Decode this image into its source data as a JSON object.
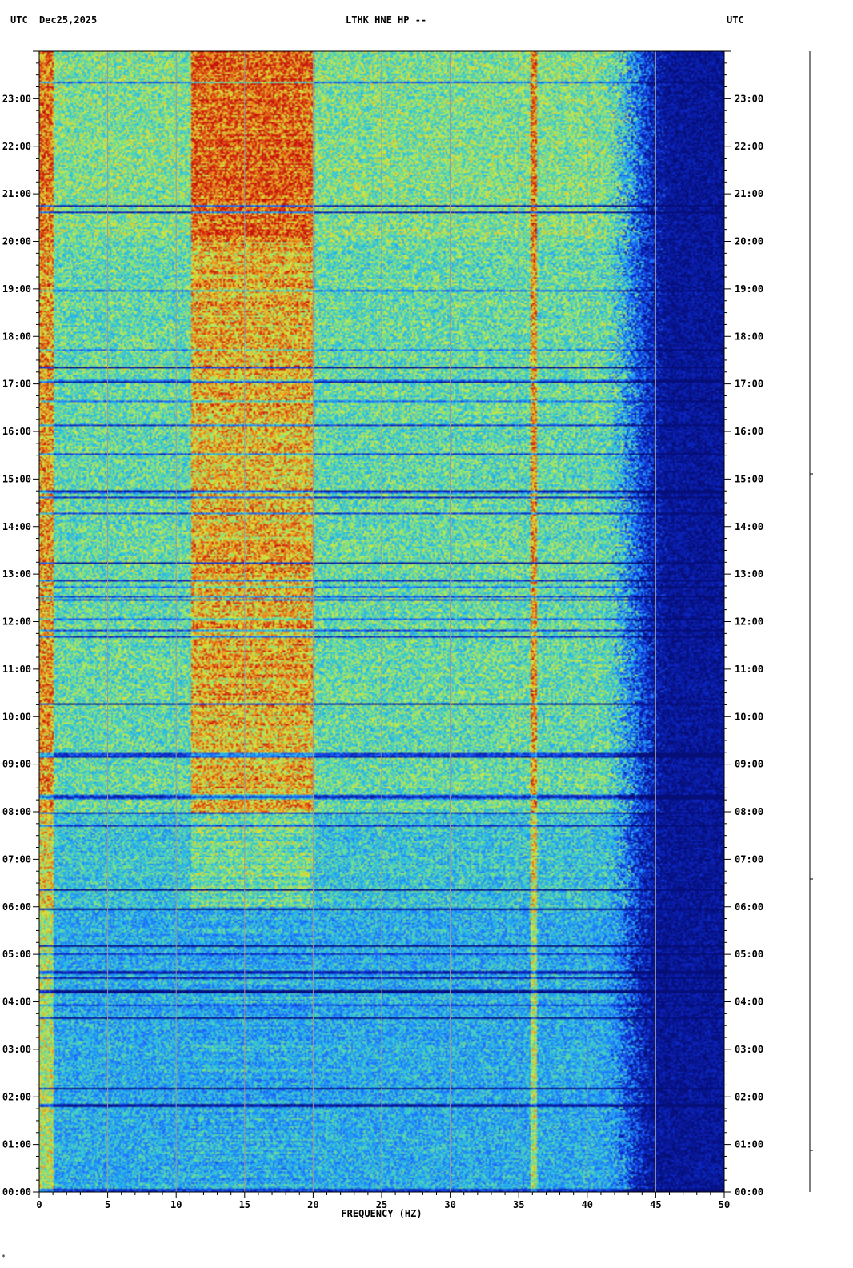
{
  "header": {
    "left_tz": "UTC",
    "date": "Dec25,2025",
    "station": "LTHK HNE HP --",
    "right_tz": "UTC"
  },
  "colors": {
    "background": "#ffffff",
    "noise_floor": "#0a1ea8",
    "low_energy": "#1e6cff",
    "mid_energy": "#29c8e0",
    "high_energy": "#c8e83c",
    "peak_energy": "#d21e10",
    "gridline": "#9a9a9a"
  },
  "chart_data": {
    "type": "heatmap",
    "title": "",
    "xlabel": "FREQUENCY (HZ)",
    "ylabel": "",
    "xlim": [
      0,
      50
    ],
    "ylim": [
      "00:00",
      "24:00"
    ],
    "x_ticks": [
      "0",
      "5",
      "10",
      "15",
      "20",
      "25",
      "30",
      "35",
      "40",
      "45",
      "50"
    ],
    "y_ticks_left": [
      "00:00",
      "01:00",
      "02:00",
      "03:00",
      "04:00",
      "05:00",
      "06:00",
      "07:00",
      "08:00",
      "09:00",
      "10:00",
      "11:00",
      "12:00",
      "13:00",
      "14:00",
      "15:00",
      "16:00",
      "17:00",
      "18:00",
      "19:00",
      "20:00",
      "21:00",
      "22:00",
      "23:00"
    ],
    "y_ticks_right": [
      "00:00",
      "01:00",
      "02:00",
      "03:00",
      "04:00",
      "05:00",
      "06:00",
      "07:00",
      "08:00",
      "09:00",
      "10:00",
      "11:00",
      "12:00",
      "13:00",
      "14:00",
      "15:00",
      "16:00",
      "17:00",
      "18:00",
      "19:00",
      "20:00",
      "21:00",
      "22:00",
      "23:00"
    ],
    "grid": true,
    "features": {
      "rolloff_hz": 42,
      "active_band_hz": [
        11,
        20
      ],
      "tone_hz": 36,
      "low_freq_band_hz": [
        0,
        1
      ]
    }
  },
  "corner_mark": "*"
}
